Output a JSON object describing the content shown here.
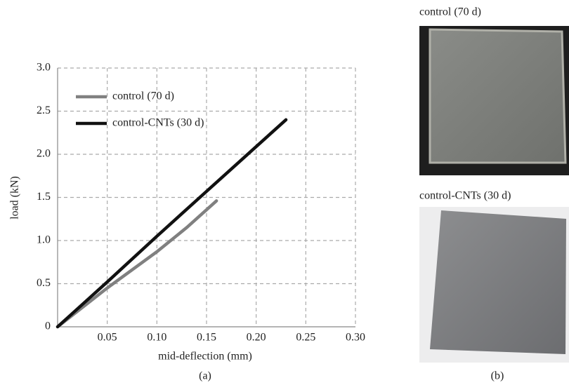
{
  "chart_data": {
    "type": "line",
    "xlabel": "mid-deflection (mm)",
    "ylabel": "load (kN)",
    "xlim": [
      0,
      0.3
    ],
    "ylim": [
      0,
      3
    ],
    "xticks": [
      0.05,
      {
        "value": 0.1,
        "label": "0.10"
      },
      0.15,
      {
        "value": 0.2,
        "label": "0.20"
      },
      0.25,
      {
        "value": 0.3,
        "label": "0.30"
      }
    ],
    "yticks": [
      0,
      0.5,
      {
        "value": 1,
        "label": "1.0"
      },
      1.5,
      {
        "value": 2,
        "label": "2.0"
      },
      2.5,
      {
        "value": 3,
        "label": "3.0"
      }
    ],
    "grid": true,
    "legend": "upper left",
    "series": [
      {
        "name": "control (70 d)",
        "color": "#808080",
        "x": [
          0,
          0.05,
          0.1,
          0.13,
          0.16
        ],
        "values": [
          0,
          0.45,
          0.87,
          1.15,
          1.46
        ]
      },
      {
        "name": "control-CNTs (30 d)",
        "color": "#111111",
        "x": [
          0,
          0.05,
          0.1,
          0.15,
          0.23
        ],
        "values": [
          0,
          0.52,
          1.05,
          1.57,
          2.4
        ]
      }
    ]
  },
  "panel_labels": [
    "(a)",
    "(b)"
  ],
  "photos": [
    {
      "caption": "control (70 d)"
    },
    {
      "caption": "control-CNTs (30 d)"
    }
  ]
}
